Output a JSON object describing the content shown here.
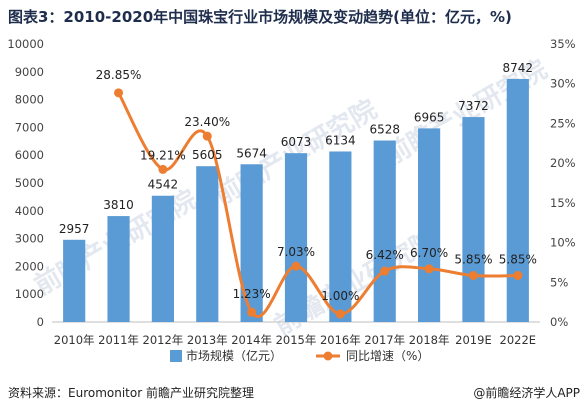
{
  "title": "图表3：2010-2020年中国珠宝行业市场规模及变动趋势(单位：亿元，%)",
  "source": "资料来源：Euromonitor 前瞻产业研究院整理",
  "brand": "@前瞻经济学人APP",
  "watermark": "前瞻产业研究院",
  "colors": {
    "bar": "#5b9bd5",
    "line": "#ed7d31"
  },
  "chart_data": {
    "type": "bar",
    "categories": [
      "2010年",
      "2011年",
      "2012年",
      "2013年",
      "2014年",
      "2015年",
      "2016年",
      "2017年",
      "2018年",
      "2019E",
      "2022E"
    ],
    "series": [
      {
        "name": "市场规模（亿元）",
        "type": "bar",
        "axis": "left",
        "values": [
          2957,
          3810,
          4542,
          5605,
          5674,
          6073,
          6134,
          6528,
          6965,
          7372,
          8742
        ],
        "labels": [
          "2957",
          "3810",
          "4542",
          "5605",
          "5674",
          "6073",
          "6134",
          "6528",
          "6965",
          "7372",
          "8742"
        ]
      },
      {
        "name": "同比增速（%）",
        "type": "line",
        "axis": "right",
        "values": [
          null,
          28.85,
          19.21,
          23.4,
          1.23,
          7.03,
          1.0,
          6.42,
          6.7,
          5.85,
          5.85
        ],
        "labels": [
          "",
          "28.85%",
          "19.21%",
          "23.40%",
          "1.23%",
          "7.03%",
          "1.00%",
          "6.42%",
          "6.70%",
          "5.85%",
          "5.85%"
        ]
      }
    ],
    "y_left": {
      "min": 0,
      "max": 10000,
      "ticks": [
        0,
        1000,
        2000,
        3000,
        4000,
        5000,
        6000,
        7000,
        8000,
        9000,
        10000
      ]
    },
    "y_right": {
      "min": 0,
      "max": 35,
      "ticks": [
        "0%",
        "5%",
        "10%",
        "15%",
        "20%",
        "25%",
        "30%",
        "35%"
      ]
    },
    "grid": false,
    "legend": "bottom"
  }
}
